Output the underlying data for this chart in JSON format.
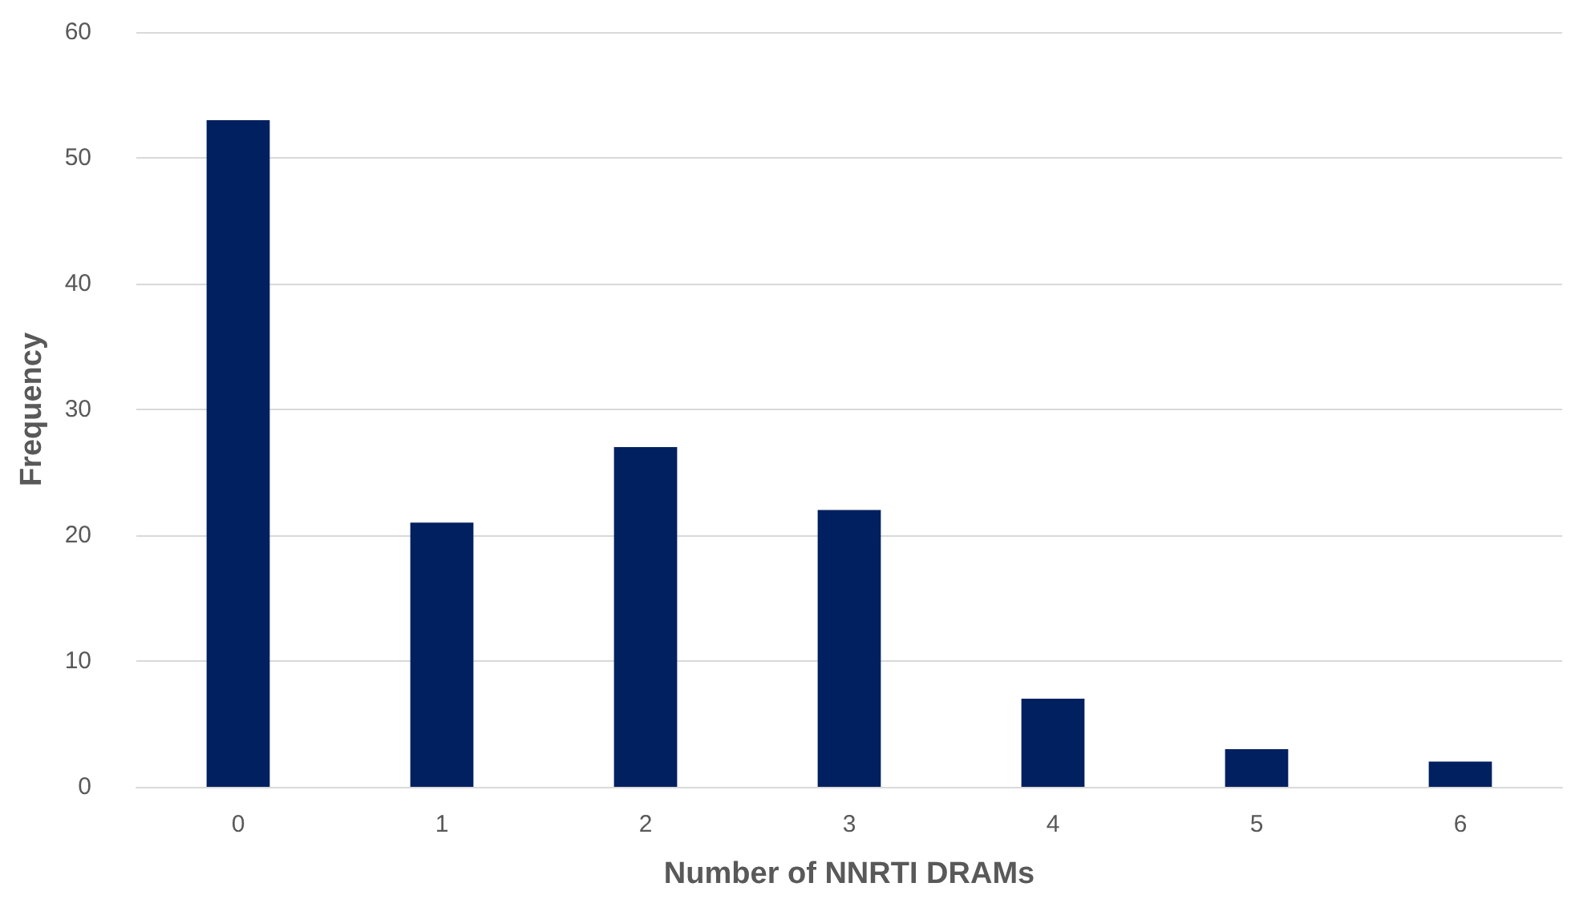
{
  "chart_data": {
    "type": "bar",
    "xlabel": "Number of NNRTI DRAMs",
    "ylabel": "Frequency",
    "categories": [
      "0",
      "1",
      "2",
      "3",
      "4",
      "5",
      "6"
    ],
    "values": [
      53,
      21,
      27,
      22,
      7,
      3,
      2
    ],
    "color": "#002060",
    "ylim": [
      0,
      60
    ],
    "yticks": [
      0,
      10,
      20,
      30,
      40,
      50,
      60
    ],
    "grid": "y"
  }
}
